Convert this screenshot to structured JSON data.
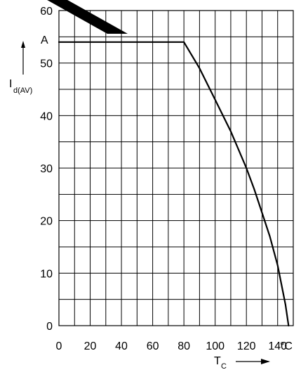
{
  "chart_data": {
    "type": "line",
    "x_unit": "°C",
    "y_unit": "A",
    "ylabel": "I",
    "ylabel_sub": "d(AV)",
    "xlabel": "T",
    "xlabel_sub": "C",
    "xlim": [
      0,
      150
    ],
    "ylim": [
      0,
      60
    ],
    "grid": true,
    "x_ticks": [
      0,
      20,
      40,
      60,
      80,
      100,
      120,
      140
    ],
    "y_ticks": [
      0,
      10,
      20,
      30,
      40,
      50,
      60
    ],
    "series": [
      {
        "x": [
          0,
          80,
          90,
          100,
          110,
          120,
          125,
          130,
          135,
          140,
          145,
          147
        ],
        "y": [
          54,
          54,
          49,
          43,
          37,
          30,
          26,
          21.5,
          17,
          11.5,
          4,
          0
        ]
      }
    ]
  }
}
